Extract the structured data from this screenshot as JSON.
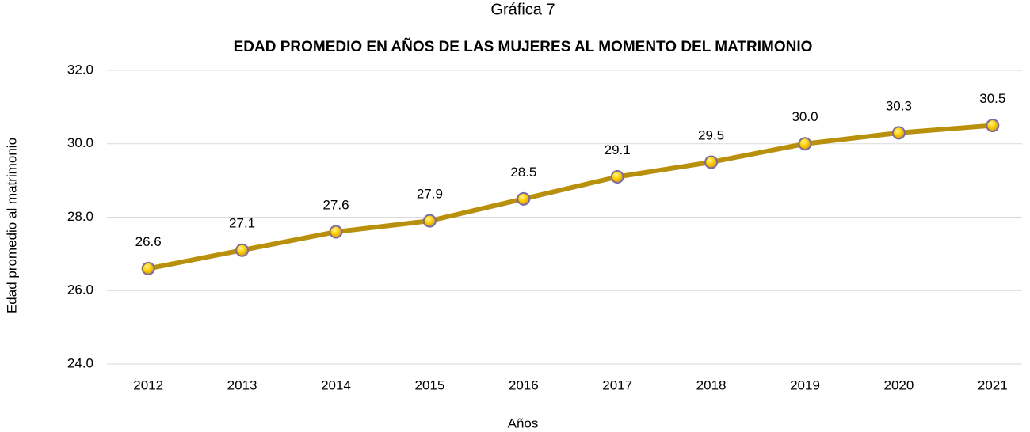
{
  "chart_data": {
    "type": "line",
    "title": "Gráfica 7",
    "subtitle": "EDAD PROMEDIO EN AÑOS DE LAS MUJERES AL MOMENTO DEL MATRIMONIO",
    "y_label": "Edad promedio al matrimonio",
    "x_label": "Años",
    "categories": [
      "2012",
      "2013",
      "2014",
      "2015",
      "2016",
      "2017",
      "2018",
      "2019",
      "2020",
      "2021"
    ],
    "series": [
      {
        "name": "Edad promedio",
        "color": "#b8900c",
        "values": [
          26.6,
          27.1,
          27.6,
          27.9,
          28.5,
          29.1,
          29.5,
          30.0,
          30.3,
          30.5
        ],
        "value_labels": [
          "26.6",
          "27.1",
          "27.6",
          "27.9",
          "28.5",
          "29.1",
          "29.5",
          "30.0",
          "30.3",
          "30.5"
        ]
      }
    ],
    "ylim": [
      24,
      32
    ],
    "yticks": [
      {
        "value": 24,
        "label": "24.0"
      },
      {
        "value": 26,
        "label": "26.0"
      },
      {
        "value": 28,
        "label": "28.0"
      },
      {
        "value": 30,
        "label": "30.0"
      },
      {
        "value": 32,
        "label": "32.0"
      }
    ],
    "grid": true
  }
}
